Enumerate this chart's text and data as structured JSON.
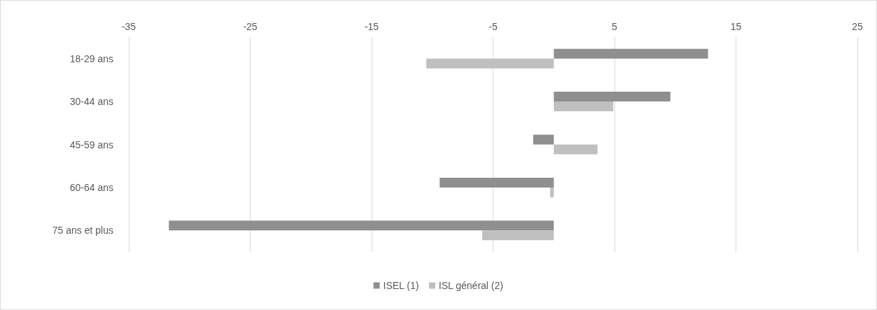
{
  "chart_data": {
    "type": "bar",
    "orientation": "horizontal",
    "categories": [
      "18-29 ans",
      "30-44 ans",
      "45-59 ans",
      "60-64 ans",
      "75 ans et plus"
    ],
    "series": [
      {
        "name": "ISEL (1)",
        "color": "#8f8f8f",
        "values": [
          12.7,
          9.6,
          -1.7,
          -9.4,
          -31.7
        ]
      },
      {
        "name": "ISL général (2)",
        "color": "#bfbfbf",
        "values": [
          -10.5,
          4.9,
          3.6,
          -0.3,
          -5.9
        ]
      }
    ],
    "xlim": [
      -35,
      25
    ],
    "xticks": [
      -35,
      -25,
      -15,
      -5,
      5,
      15,
      25
    ],
    "grid": "x",
    "legend": "bottom"
  }
}
